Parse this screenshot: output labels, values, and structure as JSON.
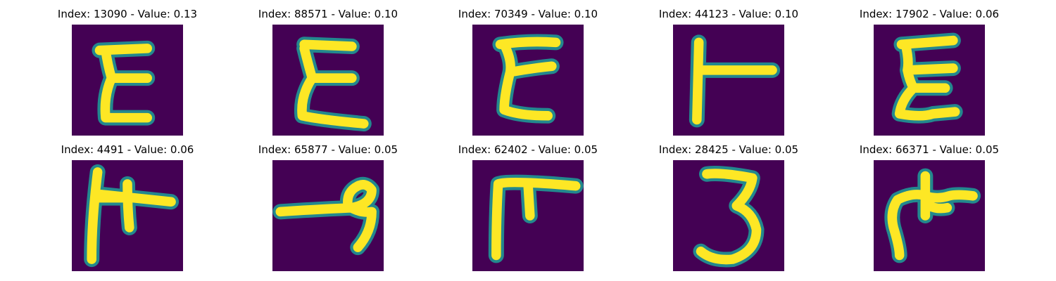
{
  "figure": {
    "panels": [
      {
        "index": "13090",
        "value": "0.13",
        "caption": "Index: 13090 - Value: 0.13",
        "glyph": "E-shape (sample 13090)"
      },
      {
        "index": "88571",
        "value": "0.10",
        "caption": "Index: 88571 - Value: 0.10",
        "glyph": "E-shape (sample 88571)"
      },
      {
        "index": "70349",
        "value": "0.10",
        "caption": "Index: 70349 - Value: 0.10",
        "glyph": "E-shape (sample 70349)"
      },
      {
        "index": "44123",
        "value": "0.10",
        "caption": "Index: 44123 - Value: 0.10",
        "glyph": "T-shape (sample 44123)"
      },
      {
        "index": "17902",
        "value": "0.06",
        "caption": "Index: 17902 - Value: 0.06",
        "glyph": "E-shape (sample 17902)"
      },
      {
        "index": "4491",
        "value": "0.06",
        "caption": "Index: 4491 - Value: 0.06",
        "glyph": "double-cross shape (sample 4491)"
      },
      {
        "index": "65877",
        "value": "0.05",
        "caption": "Index: 65877 - Value: 0.05",
        "glyph": "looped shape (sample 65877)"
      },
      {
        "index": "62402",
        "value": "0.05",
        "caption": "Index: 62402 - Value: 0.05",
        "glyph": "F-shape (sample 62402)"
      },
      {
        "index": "28425",
        "value": "0.05",
        "caption": "Index: 28425 - Value: 0.05",
        "glyph": "digit 3 (sample 28425)"
      },
      {
        "index": "66371",
        "value": "0.05",
        "caption": "Index: 66371 - Value: 0.05",
        "glyph": "blob-cross shape (sample 66371)"
      }
    ],
    "colors": {
      "background": "#440154",
      "stroke_core": "#fde725",
      "stroke_halo": "#23888e",
      "caption_text": "#000000"
    }
  }
}
